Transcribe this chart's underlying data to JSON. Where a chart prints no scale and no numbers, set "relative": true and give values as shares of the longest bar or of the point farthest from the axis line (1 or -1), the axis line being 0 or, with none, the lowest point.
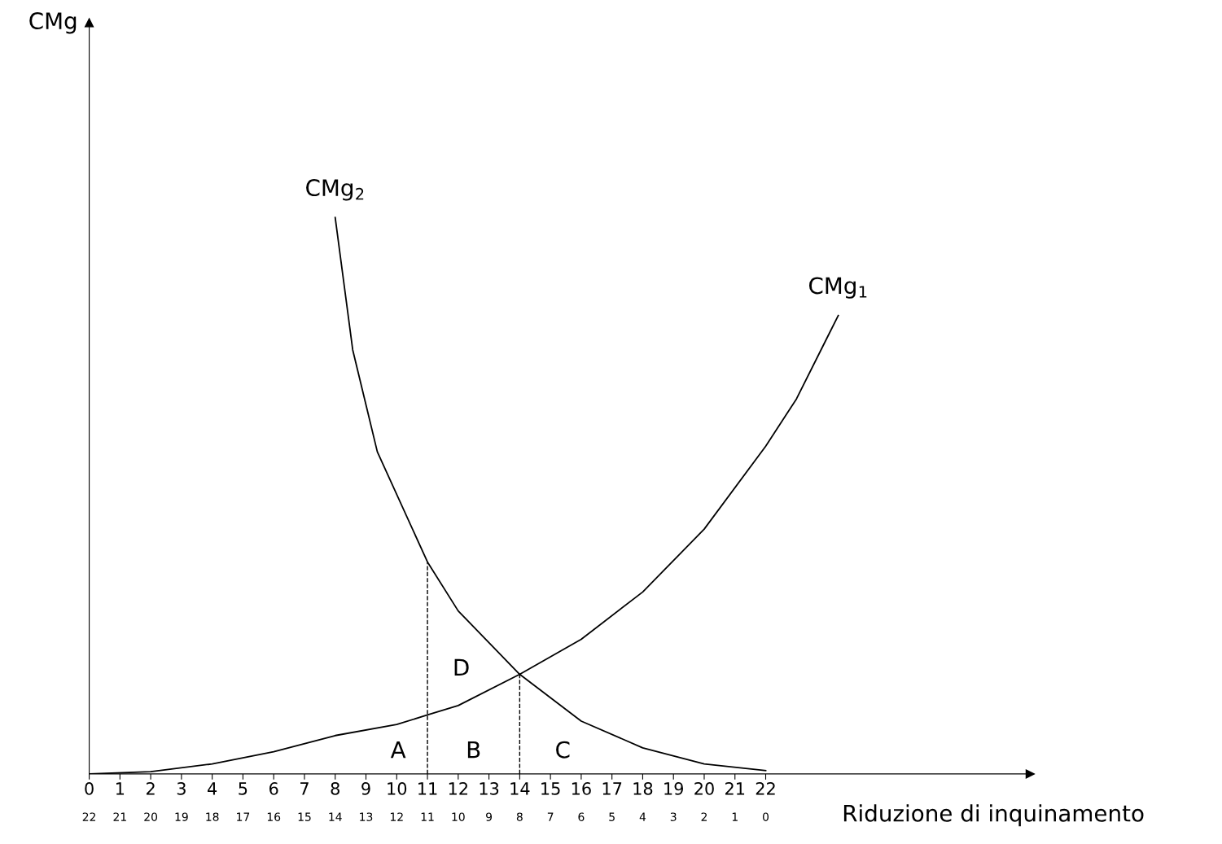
{
  "chart_data": {
    "type": "line",
    "relative": true,
    "xlabel": "Riduzione di inquinamento",
    "xlim": [
      0,
      30.6
    ],
    "xticks": [
      0,
      1,
      2,
      3,
      4,
      5,
      6,
      7,
      8,
      9,
      10,
      11,
      12,
      13,
      14,
      15,
      16,
      17,
      18,
      19,
      20,
      21,
      22
    ],
    "x2lim": [
      22,
      -8.6
    ],
    "x2ticks": [
      22,
      21,
      20,
      19,
      18,
      17,
      16,
      15,
      14,
      13,
      12,
      11,
      10,
      9,
      8,
      7,
      6,
      5,
      4,
      3,
      2,
      1,
      0
    ],
    "series": [
      {
        "name": "CMg$_{2}$",
        "color": "#000000",
        "x": [
          8,
          8.57,
          9.37,
          11,
          12,
          14,
          16,
          18,
          20,
          22
        ],
        "values": [
          1.0,
          0.762,
          0.579,
          0.381,
          0.293,
          0.179,
          0.095,
          0.047,
          0.018,
          0.006
        ]
      },
      {
        "name": "CMg$_{1}$",
        "color": "#000000",
        "x": [
          0,
          2,
          4,
          6,
          8,
          10,
          11,
          12,
          14,
          16,
          18,
          20,
          22,
          23,
          24.36
        ],
        "values": [
          0,
          0.004,
          0.018,
          0.04,
          0.069,
          0.089,
          0.106,
          0.123,
          0.179,
          0.242,
          0.327,
          0.44,
          0.589,
          0.674,
          0.824
        ]
      }
    ],
    "ref_lines": [
      {
        "axis": "x",
        "value": 11,
        "color": "#000000",
        "line_style": "dashed"
      },
      {
        "axis": "x",
        "value": 14,
        "color": "#000000",
        "line_style": "dashed"
      }
    ],
    "annotations": [
      "CMg",
      "A",
      "B",
      "C",
      "D"
    ],
    "grid": false,
    "legend": false,
    "marker": "none",
    "line_style": "solid"
  }
}
